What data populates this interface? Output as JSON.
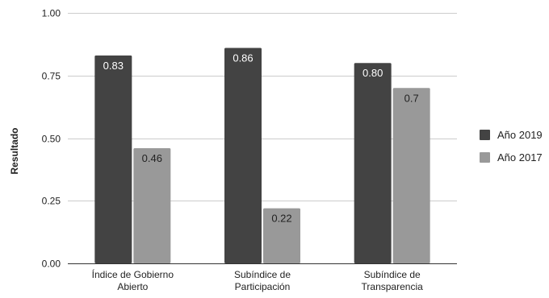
{
  "chart_data": {
    "type": "bar",
    "categories": [
      [
        "Índice de Gobierno",
        "Abierto"
      ],
      [
        "Subíndice de",
        "Participación"
      ],
      [
        "Subíndice de",
        "Transparencia"
      ]
    ],
    "series": [
      {
        "name": "Año 2019",
        "color": "#434343",
        "values": [
          0.83,
          0.86,
          0.8
        ],
        "labels": [
          "0.83",
          "0.86",
          "0.80"
        ],
        "label_color": "#ffffff"
      },
      {
        "name": "Año 2017",
        "color": "#999999",
        "values": [
          0.46,
          0.22,
          0.7
        ],
        "labels": [
          "0.46",
          "0.22",
          "0.7"
        ],
        "label_color": "#222222"
      }
    ],
    "ylabel": "Resultado",
    "xlabel": "",
    "ylim": [
      0,
      1
    ],
    "yticks": [
      0,
      0.25,
      0.5,
      0.75,
      1.0
    ],
    "ytick_labels": [
      "0.00",
      "0.25",
      "0.50",
      "0.75",
      "1.00"
    ],
    "grid": true,
    "grid_color": "#cccccc",
    "legend_position": "right"
  }
}
